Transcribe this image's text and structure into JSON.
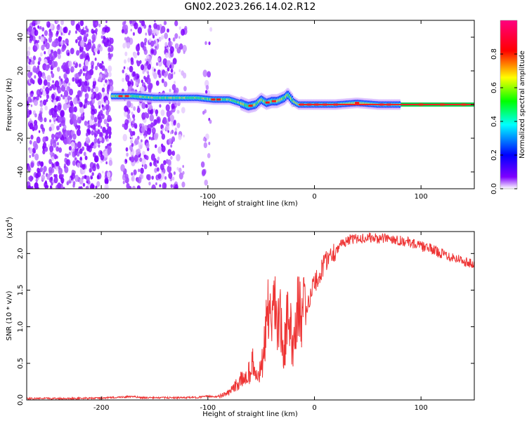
{
  "title": "GN02.2023.266.14.02.R12",
  "charts": [
    {
      "type": "heatmap",
      "xlabel": "Height of straight line (km)",
      "ylabel": "Frequency (Hz)",
      "xlim": [
        -270,
        150
      ],
      "ylim": [
        -50,
        50
      ],
      "xticks": [
        -200,
        -100,
        0,
        100
      ],
      "yticks": [
        -40,
        -20,
        0,
        20,
        40
      ],
      "colorbar": {
        "label": "Normalized spectral amplitude",
        "range": [
          0,
          1
        ],
        "ticks": [
          "0.0",
          "0.2",
          "0.4",
          "0.6",
          "0.8"
        ],
        "colormap": [
          "#ffffff",
          "#7f00ff",
          "#0000ff",
          "#00ffff",
          "#00ff00",
          "#ffff00",
          "#ff0000",
          "#ff007f"
        ]
      },
      "ridge": {
        "x": [
          -190,
          -170,
          -150,
          -130,
          -110,
          -95,
          -80,
          -70,
          -62,
          -55,
          -50,
          -45,
          -40,
          -35,
          -28,
          -25,
          -20,
          -15,
          0,
          20,
          40,
          60,
          80,
          150
        ],
        "y": [
          5,
          5,
          4,
          4,
          4,
          3,
          3,
          1,
          -1,
          0,
          3,
          1,
          2,
          2,
          4,
          6,
          2,
          0,
          0,
          0,
          1,
          0,
          0,
          0
        ]
      }
    },
    {
      "type": "line",
      "xlabel": "Height of straight line (km)",
      "ylabel": "SNR (10 * v/v)",
      "multiplier": "(x10",
      "multiplier_exp": "4",
      "xlim": [
        -270,
        150
      ],
      "ylim": [
        0,
        23000
      ],
      "xticks": [
        -200,
        -100,
        0,
        100
      ],
      "yticks": [
        0,
        5000,
        10000,
        15000,
        20000
      ],
      "yticklabels": [
        "0.0",
        "0.5",
        "1.0",
        "1.5",
        "2.0"
      ],
      "color": "#ee3333",
      "x": [
        -270,
        -230,
        -200,
        -180,
        -170,
        -160,
        -130,
        -110,
        -100,
        -90,
        -80,
        -70,
        -62,
        -58,
        -55,
        -50,
        -46,
        -44,
        -40,
        -37,
        -35,
        -32,
        -30,
        -25,
        -20,
        -15,
        -12,
        -10,
        -8,
        -5,
        0,
        5,
        10,
        20,
        30,
        40,
        50,
        60,
        70,
        80,
        90,
        100,
        110,
        120,
        130,
        140,
        150
      ],
      "y": [
        200,
        200,
        250,
        400,
        450,
        300,
        300,
        350,
        500,
        450,
        1000,
        2500,
        3500,
        5000,
        3000,
        4000,
        8000,
        14000,
        8000,
        15000,
        9000,
        12000,
        6000,
        11000,
        8000,
        13000,
        10000,
        18000,
        11000,
        14000,
        16000,
        17000,
        19000,
        20500,
        21800,
        22000,
        22200,
        22000,
        22100,
        21800,
        21500,
        21000,
        20600,
        20000,
        19500,
        19000,
        18400
      ]
    }
  ]
}
